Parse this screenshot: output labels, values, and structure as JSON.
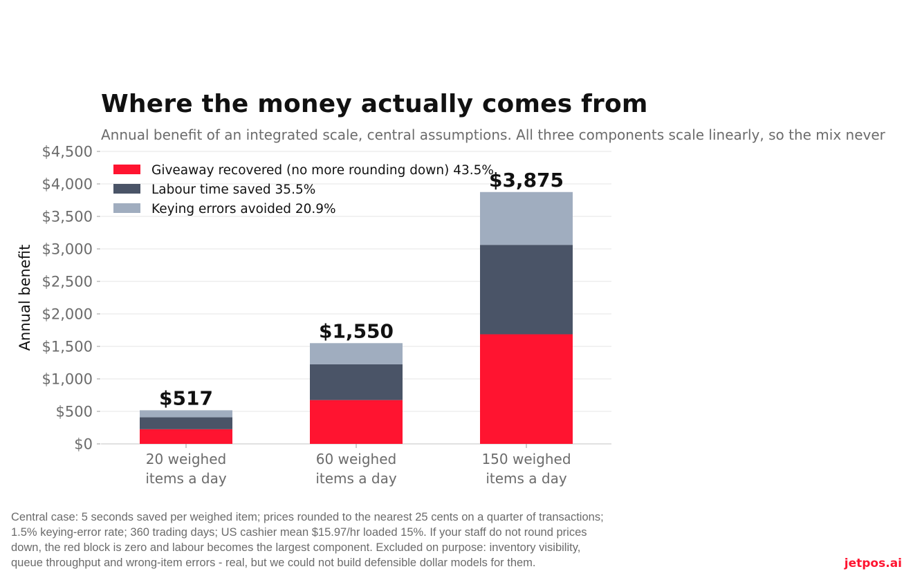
{
  "chart_data": {
    "type": "bar",
    "stacked": true,
    "title": "Where the money actually comes from",
    "subtitle": "Annual benefit of an integrated scale, central assumptions. All three components scale linearly, so the mix never",
    "ylabel": "Annual benefit",
    "xlabel": "",
    "ylim": [
      0,
      4500
    ],
    "yticks": [
      0,
      500,
      1000,
      1500,
      2000,
      2500,
      3000,
      3500,
      4000,
      4500
    ],
    "ytick_labels": [
      "$0",
      "$500",
      "$1,000",
      "$1,500",
      "$2,000",
      "$2,500",
      "$3,000",
      "$3,500",
      "$4,000",
      "$4,500"
    ],
    "categories": [
      [
        "20 weighed",
        "items a day"
      ],
      [
        "60 weighed",
        "items a day"
      ],
      [
        "150 weighed",
        "items a day"
      ]
    ],
    "series": [
      {
        "name": "Giveaway recovered (no more rounding down)",
        "share": "43.5%",
        "color": "#ff1430",
        "values": [
          225,
          674,
          1686
        ]
      },
      {
        "name": "Labour time saved",
        "share": "35.5%",
        "color": "#4a5467",
        "values": [
          184,
          550,
          1376
        ]
      },
      {
        "name": "Keying errors avoided",
        "share": "20.9%",
        "color": "#a0adbf",
        "values": [
          108,
          326,
          813
        ]
      }
    ],
    "totals": [
      517,
      1550,
      3875
    ],
    "total_labels": [
      "$517",
      "$1,550",
      "$3,875"
    ],
    "grid": true,
    "legend_position": "top-left"
  },
  "footnote": {
    "lines": [
      "Central case: 5 seconds saved per weighed item; prices rounded to the nearest 25 cents on a quarter of transactions;",
      "1.5% keying-error rate; 360 trading days; US cashier mean $15.97/hr loaded 15%. If your staff do not round prices",
      "down, the red block is zero and labour becomes the largest component. Excluded on purpose: inventory visibility,",
      "queue throughput and wrong-item errors - real, but we could not build defensible dollar models for them."
    ]
  },
  "brand": "jetpos.ai"
}
